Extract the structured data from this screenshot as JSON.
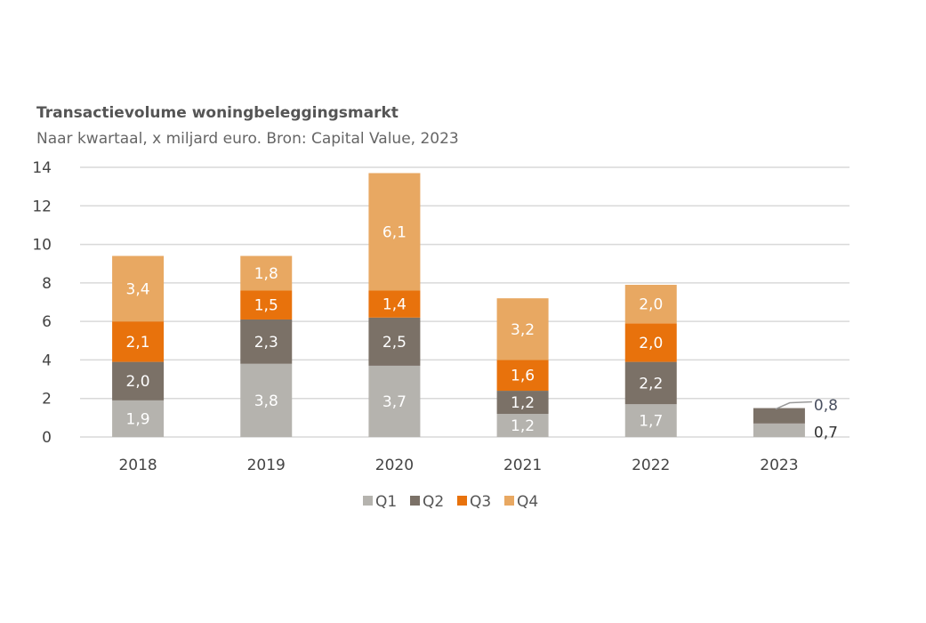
{
  "chart_data": {
    "type": "bar",
    "stacked": true,
    "title": "Transactievolume woningbeleggingsmarkt",
    "subtitle": "Naar kwartaal, x miljard euro. Bron: Capital Value, 2023",
    "xlabel": "",
    "ylabel": "",
    "ylim": [
      0,
      14
    ],
    "yticks": [
      0,
      2,
      4,
      6,
      8,
      10,
      12,
      14
    ],
    "grid": true,
    "legend_position": "bottom",
    "categories": [
      "2018",
      "2019",
      "2020",
      "2021",
      "2022",
      "2023"
    ],
    "series": [
      {
        "name": "Q1",
        "color": "#b5b3ae",
        "values": [
          1.9,
          3.8,
          3.7,
          1.2,
          1.7,
          0.7
        ],
        "labels": [
          "1,9",
          "3,8",
          "3,7",
          "1,2",
          "1,7",
          "0,7"
        ]
      },
      {
        "name": "Q2",
        "color": "#7b7167",
        "values": [
          2.0,
          2.3,
          2.5,
          1.2,
          2.2,
          0.8
        ],
        "labels": [
          "2,0",
          "2,3",
          "2,5",
          "1,2",
          "2,2",
          "0,8"
        ]
      },
      {
        "name": "Q3",
        "color": "#e8720c",
        "values": [
          2.1,
          1.5,
          1.4,
          1.6,
          2.0,
          null
        ],
        "labels": [
          "2,1",
          "1,5",
          "1,4",
          "1,6",
          "2,0",
          null
        ]
      },
      {
        "name": "Q4",
        "color": "#e8a862",
        "values": [
          3.4,
          1.8,
          6.1,
          3.2,
          2.0,
          null
        ],
        "labels": [
          "3,4",
          "1,8",
          "6,1",
          "3,2",
          "2,0",
          null
        ]
      }
    ]
  }
}
